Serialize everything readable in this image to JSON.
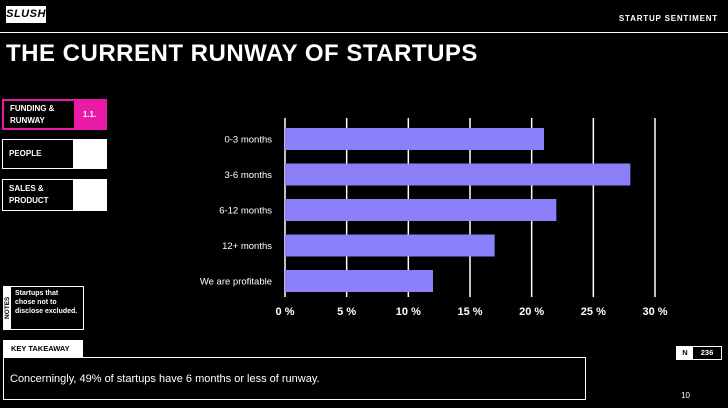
{
  "logo": "SLUSH",
  "header": {
    "section": "STARTUP SENTIMENT"
  },
  "title": "THE CURRENT RUNWAY OF STARTUPS",
  "sidebar": {
    "tabs": [
      {
        "label": "FUNDING & RUNWAY",
        "sub": "1.1."
      },
      {
        "label": "PEOPLE",
        "sub": ""
      },
      {
        "label": "SALES & PRODUCT",
        "sub": ""
      }
    ]
  },
  "notes": {
    "tag": "NOTES",
    "text": "Startups that chose not to disclose excluded."
  },
  "takeaway": {
    "label": "KEY TAKEAWAY",
    "text": "Concerningly, 49% of startups have 6 months or less of runway."
  },
  "sample": {
    "n_label": "N",
    "n_value": "236"
  },
  "page_number": "10",
  "colors": {
    "bar": "#8b80f9",
    "accent": "#e91ba6"
  },
  "chart_data": {
    "type": "bar",
    "orientation": "horizontal",
    "categories": [
      "0-3 months",
      "3-6 months",
      "6-12 months",
      "12+ months",
      "We are profitable"
    ],
    "values": [
      21,
      28,
      22,
      17,
      12
    ],
    "x_ticks": [
      "0 %",
      "5 %",
      "10 %",
      "15 %",
      "20 %",
      "25 %",
      "30 %"
    ],
    "xlim": [
      0,
      30
    ],
    "grid": true
  }
}
